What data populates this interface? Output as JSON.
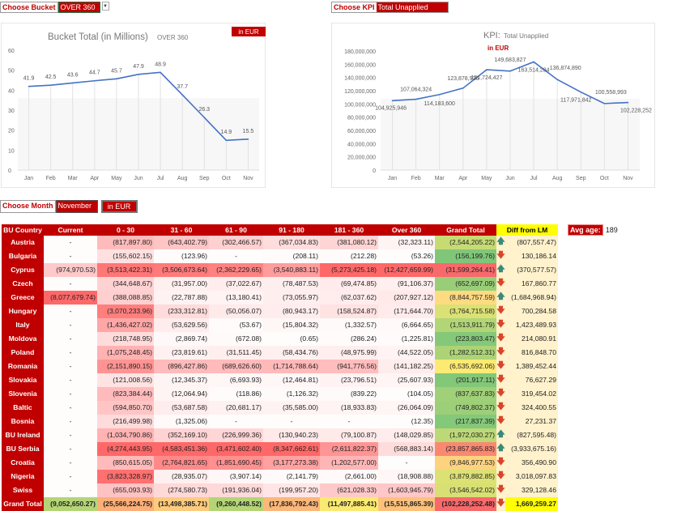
{
  "controls": {
    "bucket_label": "Choose Bucket",
    "bucket_value": "OVER 360",
    "kpi_label": "Choose KPI",
    "kpi_value": "Total Unapplied",
    "month_label": "Choose Month",
    "month_value": "November",
    "currency_badge": "in EUR"
  },
  "colors": {
    "accent": "#c00000",
    "line": "#4472c4",
    "up_arrow": "#3a8a7a",
    "down_arrow": "#d9442a",
    "diff_header": "#ffff00"
  },
  "chart_data": [
    {
      "type": "line",
      "title": "Bucket Total (in Millions)",
      "subtitle": "OVER 360",
      "badge": "in EUR",
      "categories": [
        "Jan",
        "Feb",
        "Mar",
        "Apr",
        "May",
        "Jun",
        "Jul",
        "Aug",
        "Sep",
        "Oct",
        "Nov"
      ],
      "values": [
        41.9,
        42.5,
        43.6,
        44.7,
        45.7,
        47.9,
        48.9,
        37.7,
        26.3,
        14.9,
        15.5
      ],
      "data_labels": [
        "41.9",
        "42.5",
        "43.6",
        "44.7",
        "45.7",
        "47.9",
        "48.9",
        "37.7",
        "26.3",
        "14.9",
        "15.5"
      ],
      "ylim": [
        0,
        60
      ],
      "yticks": [
        "0",
        "10",
        "20",
        "30",
        "40",
        "50",
        "60"
      ],
      "grid": "vertical"
    },
    {
      "type": "line",
      "title": "KPI:",
      "subtitle": "Total Unapplied",
      "note": "in EUR",
      "categories": [
        "Jan",
        "Feb",
        "Mar",
        "Apr",
        "May",
        "Jun",
        "Jul",
        "Aug",
        "Sep",
        "Oct",
        "Nov"
      ],
      "values": [
        104925946,
        107064324,
        114183600,
        123878926,
        151724427,
        149683827,
        163514284,
        136874890,
        117971842,
        100558993,
        102228252
      ],
      "data_labels": [
        "104,925,946",
        "107,064,324",
        "114,183,600",
        "123,878,926",
        "151,724,427",
        "149,683,827",
        "163,514,284",
        "136,874,890",
        "117,971,842",
        "100,558,993",
        "102,228,252"
      ],
      "ylim": [
        0,
        180000000
      ],
      "yticks": [
        "0",
        "20,000,000",
        "40,000,000",
        "60,000,000",
        "80,000,000",
        "100,000,000",
        "120,000,000",
        "140,000,000",
        "160,000,000",
        "180,000,000"
      ],
      "grid": "vertical"
    }
  ],
  "table": {
    "headers": [
      "BU Country",
      "Current",
      "0 - 30",
      "31 - 60",
      "61 - 90",
      "91 - 180",
      "181 - 360",
      "Over 360",
      "Grand Total",
      "Diff from LM"
    ],
    "rows": [
      [
        "Austria",
        "-",
        "(817,897.80)",
        "(643,402.79)",
        "(302,466.57)",
        "(367,034.83)",
        "(381,080.12)",
        "(32,323.11)",
        "(2,544,205.22)",
        "up",
        "(807,557.47)"
      ],
      [
        "Bulgaria",
        "-",
        "(155,602.15)",
        "(123.96)",
        "-",
        "(208.11)",
        "(212.28)",
        "(53.26)",
        "(156,199.76)",
        "down",
        "130,186.14"
      ],
      [
        "Cyprus",
        "(974,970.53)",
        "(3,513,422.31)",
        "(3,506,673.64)",
        "(2,362,229.65)",
        "(3,540,883.11)",
        "(5,273,425.18)",
        "(12,427,659.99)",
        "(31,599,264.41)",
        "up",
        "(370,577.57)"
      ],
      [
        "Czech",
        "-",
        "(344,648.67)",
        "(31,957.00)",
        "(37,022.67)",
        "(78,487.53)",
        "(69,474.85)",
        "(91,106.37)",
        "(652,697.09)",
        "down",
        "167,860.77"
      ],
      [
        "Greece",
        "(8,077,679.74)",
        "(388,088.85)",
        "(22,787.88)",
        "(13,180.41)",
        "(73,055.97)",
        "(62,037.62)",
        "(207,927.12)",
        "(8,844,757.59)",
        "up",
        "(1,684,968.94)"
      ],
      [
        "Hungary",
        "-",
        "(3,070,233.96)",
        "(233,312.81)",
        "(50,056.07)",
        "(80,943.17)",
        "(158,524.87)",
        "(171,644.70)",
        "(3,764,715.58)",
        "down",
        "700,284.58"
      ],
      [
        "Italy",
        "-",
        "(1,436,427.02)",
        "(53,629.56)",
        "(53.67)",
        "(15,804.32)",
        "(1,332.57)",
        "(6,664.65)",
        "(1,513,911.79)",
        "down",
        "1,423,489.93"
      ],
      [
        "Moldova",
        "-",
        "(218,748.95)",
        "(2,869.74)",
        "(672.08)",
        "(0.65)",
        "(286.24)",
        "(1,225.81)",
        "(223,803.47)",
        "down",
        "214,080.91"
      ],
      [
        "Poland",
        "-",
        "(1,075,248.45)",
        "(23,819.61)",
        "(31,511.45)",
        "(58,434.76)",
        "(48,975.99)",
        "(44,522.05)",
        "(1,282,512.31)",
        "down",
        "816,848.70"
      ],
      [
        "Romania",
        "-",
        "(2,151,890.15)",
        "(896,427.86)",
        "(689,626.60)",
        "(1,714,788.64)",
        "(941,776.56)",
        "(141,182.25)",
        "(6,535,692.06)",
        "down",
        "1,389,452.44"
      ],
      [
        "Slovakia",
        "-",
        "(121,008.56)",
        "(12,345.37)",
        "(6,693.93)",
        "(12,464.81)",
        "(23,796.51)",
        "(25,607.93)",
        "(201,917.11)",
        "down",
        "76,627.29"
      ],
      [
        "Slovenia",
        "-",
        "(823,384.44)",
        "(12,064.94)",
        "(118.86)",
        "(1,126.32)",
        "(839.22)",
        "(104.05)",
        "(837,637.83)",
        "down",
        "319,454.02"
      ],
      [
        "Baltic",
        "-",
        "(594,850.70)",
        "(53,687.58)",
        "(20,681.17)",
        "(35,585.00)",
        "(18,933.83)",
        "(26,064.09)",
        "(749,802.37)",
        "down",
        "324,400.55"
      ],
      [
        "Bosnia",
        "-",
        "(216,499.98)",
        "(1,325.06)",
        "-",
        "-",
        "-",
        "(12.35)",
        "(217,837.39)",
        "down",
        "27,231.37"
      ],
      [
        "BU Ireland",
        "-",
        "(1,034,790.86)",
        "(352,169.10)",
        "(226,999.36)",
        "(130,940.23)",
        "(79,100.87)",
        "(148,029.85)",
        "(1,972,030.27)",
        "up",
        "(827,595.48)"
      ],
      [
        "BU Serbia",
        "-",
        "(4,274,443.95)",
        "(4,583,451.36)",
        "(3,471,602.40)",
        "(8,347,662.61)",
        "(2,611,822.37)",
        "(568,883.14)",
        "(23,857,865.83)",
        "up",
        "(3,933,675.16)"
      ],
      [
        "Croatia",
        "-",
        "(850,615.05)",
        "(2,764,821.65)",
        "(1,851,690.45)",
        "(3,177,273.38)",
        "(1,202,577.00)",
        "-",
        "(9,846,977.53)",
        "down",
        "356,490.90"
      ],
      [
        "Nigeria",
        "-",
        "(3,823,328.97)",
        "(28,935.07)",
        "(3,907.14)",
        "(2,141.79)",
        "(2,661.00)",
        "(18,908.88)",
        "(3,879,882.85)",
        "down",
        "3,018,097.83"
      ],
      [
        "Swiss",
        "-",
        "(655,093.93)",
        "(274,580.73)",
        "(191,936.04)",
        "(199,957.20)",
        "(621,028.33)",
        "(1,603,945.79)",
        "(3,546,542.02)",
        "down",
        "329,128.46"
      ]
    ],
    "total": [
      "Grand Total",
      "(9,052,650.27)",
      "(25,566,224.75)",
      "(13,498,385.71)",
      "(9,260,448.52)",
      "(17,836,792.43)",
      "(11,497,885.41)",
      "(15,515,865.39)",
      "(102,228,252.48)",
      "down",
      "1,669,259.27"
    ]
  },
  "avg_age": {
    "label": "Avg age:",
    "value": "189"
  }
}
